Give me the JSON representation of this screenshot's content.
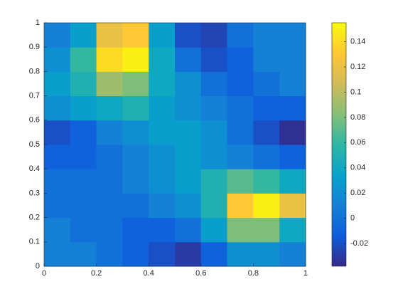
{
  "chart_data": {
    "type": "heatmap",
    "colormap": "parula",
    "xbins": [
      0,
      0.1,
      0.2,
      0.3,
      0.4,
      0.5,
      0.6,
      0.7,
      0.8,
      0.9,
      1
    ],
    "ybins": [
      0,
      0.1,
      0.2,
      0.3,
      0.4,
      0.5,
      0.6,
      0.7,
      0.8,
      0.9,
      1
    ],
    "z": [
      [
        0.01,
        0.01,
        0.0,
        -0.01,
        -0.02,
        -0.03,
        -0.01,
        0.02,
        0.02,
        0.01
      ],
      [
        0.01,
        0.0,
        0.0,
        -0.01,
        -0.01,
        0.0,
        0.03,
        0.08,
        0.08,
        0.04
      ],
      [
        0.0,
        0.0,
        0.0,
        0.0,
        0.01,
        0.02,
        0.05,
        0.13,
        0.15,
        0.12
      ],
      [
        0.0,
        0.0,
        0.0,
        0.01,
        0.02,
        0.03,
        0.05,
        0.07,
        0.06,
        0.04
      ],
      [
        -0.01,
        -0.01,
        0.0,
        0.01,
        0.02,
        0.03,
        0.02,
        0.01,
        0.0,
        -0.01
      ],
      [
        -0.02,
        -0.01,
        0.01,
        0.02,
        0.03,
        0.03,
        0.02,
        0.0,
        -0.02,
        -0.035
      ],
      [
        0.02,
        0.03,
        0.04,
        0.05,
        0.03,
        0.02,
        0.01,
        0.0,
        -0.01,
        -0.01
      ],
      [
        0.03,
        0.05,
        0.09,
        0.08,
        0.04,
        0.02,
        0.0,
        -0.01,
        0.0,
        0.01
      ],
      [
        0.02,
        0.06,
        0.14,
        0.15,
        0.04,
        0.0,
        -0.02,
        -0.01,
        0.01,
        0.01
      ],
      [
        0.01,
        0.03,
        0.12,
        0.13,
        0.03,
        -0.02,
        -0.025,
        0.0,
        0.01,
        0.01
      ]
    ],
    "xlim": [
      0,
      1
    ],
    "ylim": [
      0,
      1
    ],
    "xticks": [
      0,
      0.2,
      0.4,
      0.6,
      0.8,
      1
    ],
    "yticks": [
      0,
      0.1,
      0.2,
      0.3,
      0.4,
      0.5,
      0.6,
      0.7,
      0.8,
      0.9,
      1
    ],
    "clim": [
      -0.038,
      0.155
    ],
    "cticks": [
      -0.02,
      0,
      0.02,
      0.04,
      0.06,
      0.08,
      0.1,
      0.12,
      0.14
    ]
  }
}
